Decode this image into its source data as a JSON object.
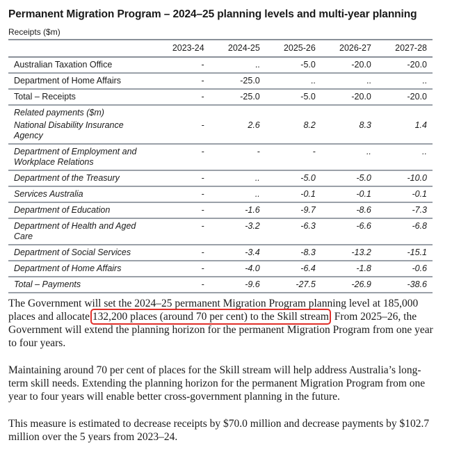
{
  "title": "Permanent Migration Program – 2024–25 planning levels and multi-year planning",
  "table": {
    "caption": "Receipts ($m)",
    "columns": [
      "",
      "2023-24",
      "2024-25",
      "2025-26",
      "2026-27",
      "2027-28"
    ],
    "receipts_rows": [
      {
        "label": "Australian Taxation Office",
        "values": [
          "-",
          "..",
          "-5.0",
          "-20.0",
          "-20.0"
        ]
      },
      {
        "label": "Department of Home Affairs",
        "values": [
          "-",
          "-25.0",
          "..",
          "..",
          ".."
        ]
      },
      {
        "label": "Total – Receipts",
        "values": [
          "-",
          "-25.0",
          "-5.0",
          "-20.0",
          "-20.0"
        ]
      }
    ],
    "payments_heading": "Related payments ($m)",
    "payments_rows": [
      {
        "label": "National Disability Insurance Agency",
        "values": [
          "-",
          "2.6",
          "8.2",
          "8.3",
          "1.4"
        ]
      },
      {
        "label": "Department of Employment and Workplace Relations",
        "values": [
          "-",
          "-",
          "-",
          "..",
          ".."
        ]
      },
      {
        "label": "Department of the Treasury",
        "values": [
          "-",
          "..",
          "-5.0",
          "-5.0",
          "-10.0"
        ]
      },
      {
        "label": "Services Australia",
        "values": [
          "-",
          "..",
          "-0.1",
          "-0.1",
          "-0.1"
        ]
      },
      {
        "label": "Department of Education",
        "values": [
          "-",
          "-1.6",
          "-9.7",
          "-8.6",
          "-7.3"
        ]
      },
      {
        "label": "Department of Health and Aged Care",
        "values": [
          "-",
          "-3.2",
          "-6.3",
          "-6.6",
          "-6.8"
        ]
      },
      {
        "label": "Department of Social Services",
        "values": [
          "-",
          "-3.4",
          "-8.3",
          "-13.2",
          "-15.1"
        ]
      },
      {
        "label": "Department of Home Affairs",
        "values": [
          "-",
          "-4.0",
          "-6.4",
          "-1.8",
          "-0.6"
        ]
      },
      {
        "label": "Total – Payments",
        "values": [
          "-",
          "-9.6",
          "-27.5",
          "-26.9",
          "-38.6"
        ]
      }
    ]
  },
  "paragraphs": {
    "p1_before": "The Government will set the 2024–25 permanent Migration Program planning level at 185,000 places and allocate ",
    "p1_highlight": "132,200 places (around 70 per cent) to the Skill stream",
    "p1_after": ". From 2025–26, the Government will extend the planning horizon for the permanent Migration Program from one year to four years.",
    "p2": "Maintaining around 70 per cent of places for the Skill stream will help address Australia’s long-term skill needs. Extending the planning horizon for the permanent Migration Program from one year to four years will enable better cross-government planning in the future.",
    "p3": "This measure is estimated to decrease receipts by $70.0 million and decrease payments by $102.7 million over the 5 years from 2023–24."
  },
  "colors": {
    "highlight_box": "#e0302a"
  }
}
